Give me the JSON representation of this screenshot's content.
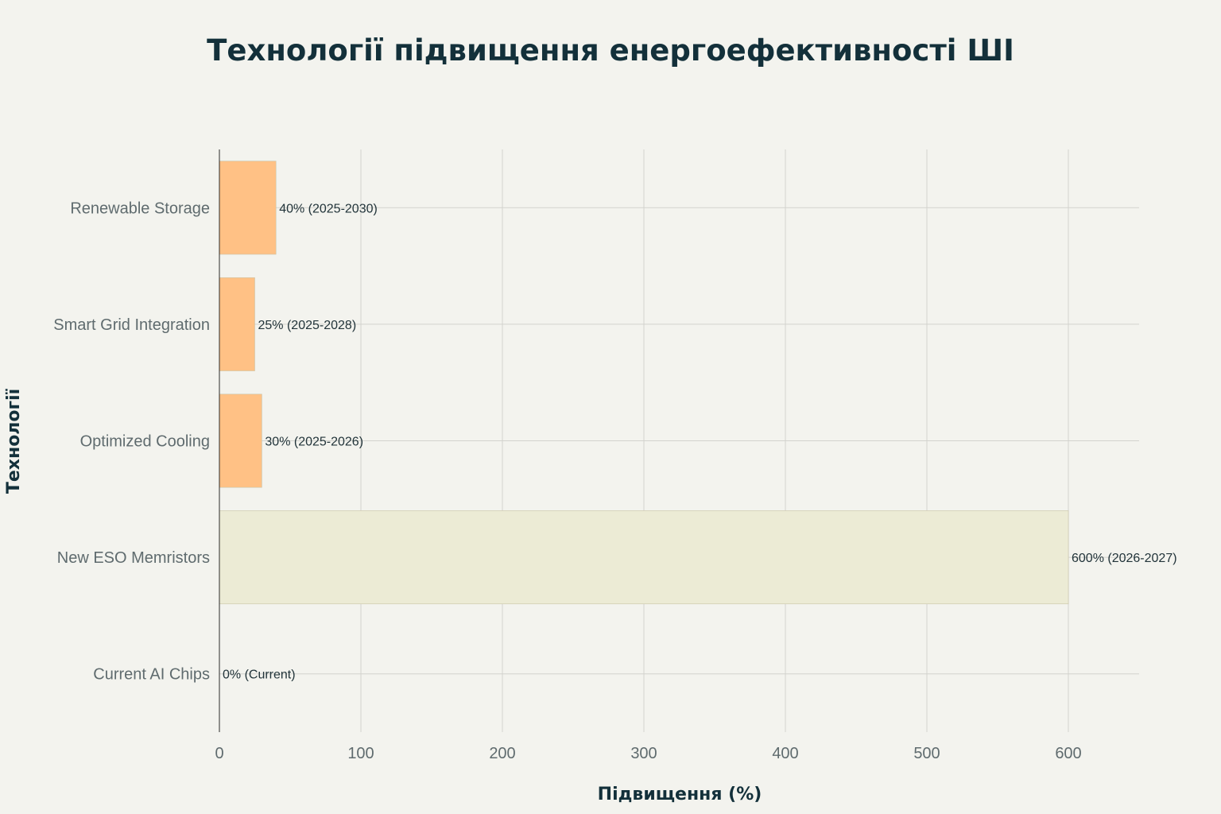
{
  "chart_data": {
    "type": "bar",
    "orientation": "horizontal",
    "title": "Технології підвищення енергоефективності ШІ",
    "xlabel": "Підвищення (%)",
    "ylabel": "Технології",
    "xlim": [
      0,
      650
    ],
    "xticks": [
      0,
      100,
      200,
      300,
      400,
      500,
      600
    ],
    "grid": true,
    "categories": [
      "Renewable Storage",
      "Smart Grid Integration",
      "Optimized Cooling",
      "New ESO Memristors",
      "Current AI Chips"
    ],
    "values": [
      40,
      25,
      30,
      600,
      0
    ],
    "data_labels": [
      "40% (2025-2030)",
      "25% (2025-2028)",
      "30% (2025-2026)",
      "600% (2026-2027)",
      "0% (Current)"
    ],
    "colors": [
      "#ffc185",
      "#ffc185",
      "#ffc185",
      "#ecebd5",
      "#ffc185"
    ]
  }
}
